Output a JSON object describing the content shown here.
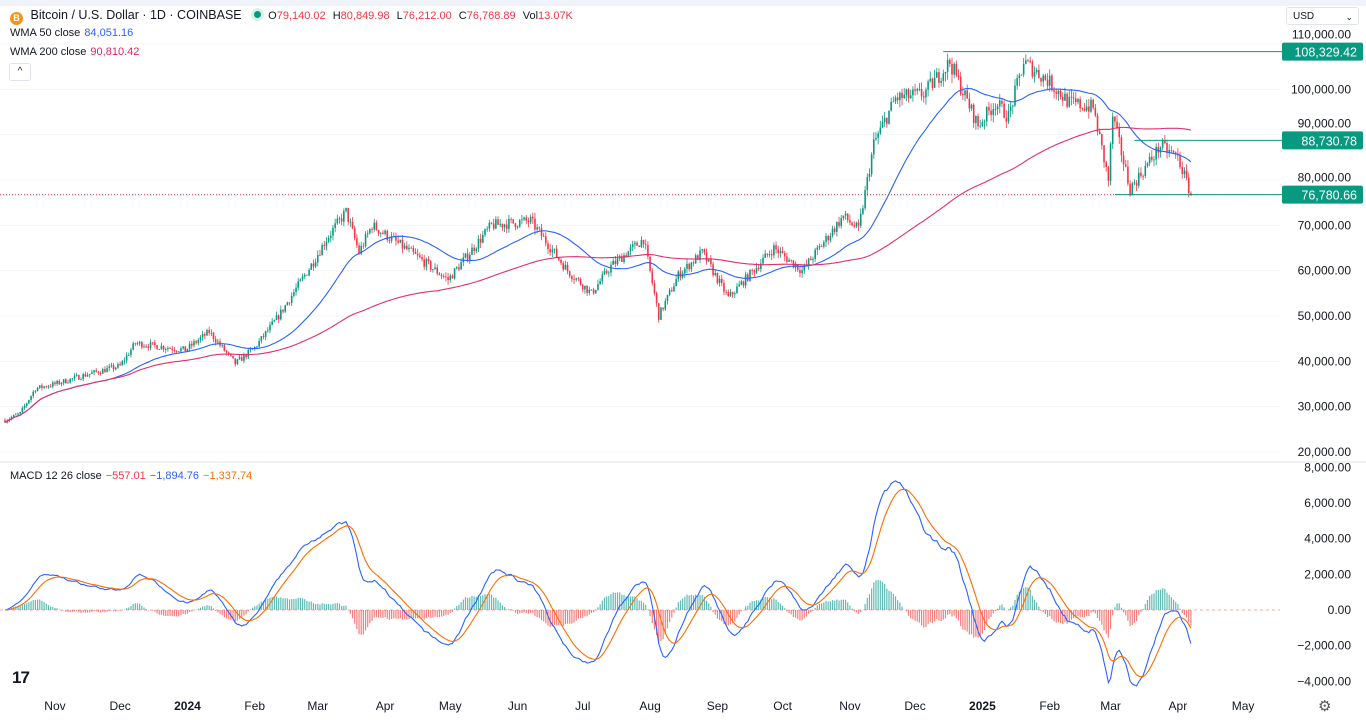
{
  "header": {
    "symbol": "Bitcoin / U.S. Dollar · 1D · COINBASE",
    "open_label": "O",
    "open": "79,140.02",
    "high_label": "H",
    "high": "80,849.98",
    "low_label": "L",
    "low": "76,212.00",
    "close_label": "C",
    "close": "76,768.89",
    "vol_label": "Vol",
    "vol": "13.07K",
    "btc_icon_letter": "B"
  },
  "indicators": {
    "wma50_label": "WMA 50 close",
    "wma50_value": "84,051.16",
    "wma200_label": "WMA 200 close",
    "wma200_value": "90,810.42",
    "macd_label": "MACD 12 26 close",
    "macd_hist": "−557.01",
    "macd_line": "−1,894.76",
    "macd_signal": "−1,337.74"
  },
  "currency": "USD",
  "collapse_icon": "^",
  "logo_text": "17",
  "gear_icon": "⚙",
  "colors": {
    "up": "#089981",
    "down": "#f23645",
    "wma50": "#2962ff",
    "wma200": "#e0306a",
    "macd": "#2962ff",
    "signal": "#ff6d00",
    "hist_up": "#26a69a",
    "hist_down": "#ef5350",
    "level": "#089981"
  },
  "chart_data": [
    {
      "type": "candlestick",
      "title": "Bitcoin / U.S. Dollar · 1D · COINBASE",
      "ylim": [
        20000,
        110000
      ],
      "y_ticks": [
        110000,
        100000,
        90000,
        80000,
        70000,
        60000,
        50000,
        40000,
        30000,
        20000
      ],
      "y_tick_labels": [
        "110,000.00",
        "100,000.00",
        "90,000.00",
        "80,000.00",
        "70,000.00",
        "60,000.00",
        "50,000.00",
        "40,000.00",
        "30,000.00",
        "20,000.00"
      ],
      "start_date": "2023-10-09",
      "end_date": "2025-04-07",
      "approx_close_path": [
        [
          "2023-10-09",
          27000
        ],
        [
          "2023-10-16",
          28500
        ],
        [
          "2023-10-23",
          34000
        ],
        [
          "2023-11-01",
          35000
        ],
        [
          "2023-11-15",
          37000
        ],
        [
          "2023-12-01",
          39000
        ],
        [
          "2023-12-08",
          44000
        ],
        [
          "2023-12-31",
          42500
        ],
        [
          "2024-01-11",
          46500
        ],
        [
          "2024-01-23",
          39500
        ],
        [
          "2024-02-01",
          43000
        ],
        [
          "2024-02-12",
          50000
        ],
        [
          "2024-02-28",
          62000
        ],
        [
          "2024-03-05",
          67000
        ],
        [
          "2024-03-14",
          73000
        ],
        [
          "2024-03-20",
          64000
        ],
        [
          "2024-03-26",
          70000
        ],
        [
          "2024-04-13",
          64000
        ],
        [
          "2024-04-30",
          58000
        ],
        [
          "2024-05-20",
          70000
        ],
        [
          "2024-06-07",
          71000
        ],
        [
          "2024-06-24",
          60000
        ],
        [
          "2024-07-05",
          55000
        ],
        [
          "2024-07-14",
          61000
        ],
        [
          "2024-07-29",
          67000
        ],
        [
          "2024-08-05",
          50000
        ],
        [
          "2024-08-14",
          59000
        ],
        [
          "2024-08-25",
          64000
        ],
        [
          "2024-09-06",
          54000
        ],
        [
          "2024-09-27",
          65000
        ],
        [
          "2024-10-10",
          60000
        ],
        [
          "2024-10-29",
          72000
        ],
        [
          "2024-11-05",
          69000
        ],
        [
          "2024-11-12",
          88000
        ],
        [
          "2024-11-22",
          98000
        ],
        [
          "2024-12-05",
          99000
        ],
        [
          "2024-12-17",
          106000
        ],
        [
          "2024-12-30",
          92000
        ],
        [
          "2025-01-07",
          97000
        ],
        [
          "2025-01-13",
          94000
        ],
        [
          "2025-01-20",
          106000
        ],
        [
          "2025-01-31",
          102000
        ],
        [
          "2025-02-10",
          97000
        ],
        [
          "2025-02-21",
          96000
        ],
        [
          "2025-02-28",
          80000
        ],
        [
          "2025-03-02",
          94000
        ],
        [
          "2025-03-10",
          78000
        ],
        [
          "2025-03-24",
          87500
        ],
        [
          "2025-04-01",
          85000
        ],
        [
          "2025-04-07",
          76800
        ]
      ],
      "levels": [
        {
          "value": 108329.42,
          "label": "108,329.42",
          "from": "2024-12-14"
        },
        {
          "value": 88730.78,
          "label": "88,730.78",
          "from": "2025-03-12"
        },
        {
          "value": 76780.66,
          "label": "76,780.66",
          "from": "2025-03-03"
        }
      ],
      "current_price": 76780.66,
      "series": [
        {
          "name": "WMA 50 close",
          "period": 50
        },
        {
          "name": "WMA 200 close",
          "period": 200
        }
      ]
    },
    {
      "type": "macd",
      "ylim": [
        -4000,
        8000
      ],
      "y_ticks": [
        8000,
        6000,
        4000,
        2000,
        0,
        -2000,
        -4000
      ],
      "y_tick_labels": [
        "8,000.00",
        "6,000.00",
        "4,000.00",
        "2,000.00",
        "0.00",
        "−2,000.00",
        "−4,000.00"
      ],
      "fast": 12,
      "slow": 26,
      "signal": 9
    }
  ],
  "x_axis": {
    "labels": [
      [
        "Nov",
        "2023-11-01"
      ],
      [
        "Dec",
        "2023-12-01"
      ],
      [
        "2024",
        "2024-01-01"
      ],
      [
        "Feb",
        "2024-02-01"
      ],
      [
        "Mar",
        "2024-03-01"
      ],
      [
        "Apr",
        "2024-04-01"
      ],
      [
        "May",
        "2024-05-01"
      ],
      [
        "Jun",
        "2024-06-01"
      ],
      [
        "Jul",
        "2024-07-01"
      ],
      [
        "Aug",
        "2024-08-01"
      ],
      [
        "Sep",
        "2024-09-01"
      ],
      [
        "Oct",
        "2024-10-01"
      ],
      [
        "Nov",
        "2024-11-01"
      ],
      [
        "Dec",
        "2024-12-01"
      ],
      [
        "2025",
        "2025-01-01"
      ],
      [
        "Feb",
        "2025-02-01"
      ],
      [
        "Mar",
        "2025-03-01"
      ],
      [
        "Apr",
        "2025-04-01"
      ],
      [
        "May",
        "2025-05-01"
      ]
    ]
  }
}
